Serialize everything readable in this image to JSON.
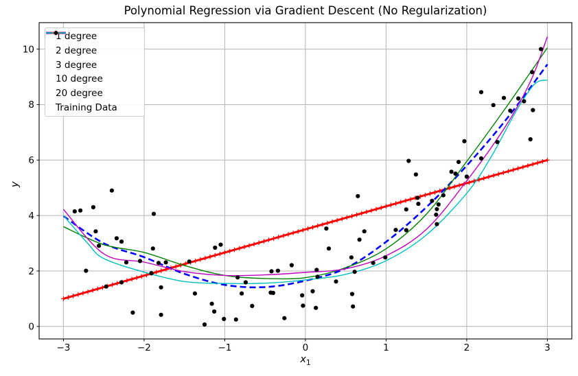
{
  "figure": {
    "title": "Polynomial Regression via Gradient Descent (No Regularization)",
    "xlabel": "x",
    "xlabel_sub": "1",
    "ylabel": "y",
    "background": "#ffffff",
    "grid_color": "#b4b4b4",
    "spine_color": "#000000",
    "text_color": "#000000"
  },
  "chart_data": {
    "type": "line+scatter",
    "title": "Polynomial Regression via Gradient Descent (No Regularization)",
    "xlabel": "x_1",
    "ylabel": "y",
    "xlim": [
      -3.3,
      3.31
    ],
    "ylim": [
      -0.45,
      10.96
    ],
    "xticks": [
      -3,
      -2,
      -1,
      0,
      1,
      2,
      3
    ],
    "yticks": [
      0,
      2,
      4,
      6,
      8,
      10
    ],
    "grid": true,
    "legend_position": "upper left",
    "series": [
      {
        "name": "1 degree",
        "color": "#ff0000",
        "style": "solid",
        "width": 3,
        "marker": "plus",
        "marker_count": 100,
        "points": [
          [
            -3,
            1.0
          ],
          [
            3,
            6.0
          ]
        ]
      },
      {
        "name": "2 degree",
        "color": "#0000ff",
        "style": "dashed",
        "width": 2.6,
        "marker": "none",
        "points": [
          [
            -3,
            3.98
          ],
          [
            -2.5,
            3.0
          ],
          [
            -2,
            2.5
          ],
          [
            -1.5,
            1.9
          ],
          [
            -1,
            1.5
          ],
          [
            -0.5,
            1.42
          ],
          [
            0,
            1.65
          ],
          [
            0.5,
            2.1
          ],
          [
            1,
            3.05
          ],
          [
            1.5,
            4.3
          ],
          [
            2,
            5.8
          ],
          [
            2.5,
            7.5
          ],
          [
            3,
            9.45
          ]
        ]
      },
      {
        "name": "3 degree",
        "color": "#008000",
        "style": "solid",
        "width": 1.4,
        "marker": "none",
        "points": [
          [
            -3,
            3.6
          ],
          [
            -2.5,
            2.95
          ],
          [
            -2,
            2.67
          ],
          [
            -1.5,
            2.2
          ],
          [
            -1,
            1.84
          ],
          [
            -0.5,
            1.73
          ],
          [
            0,
            1.76
          ],
          [
            0.5,
            2.12
          ],
          [
            1,
            2.8
          ],
          [
            1.5,
            4.05
          ],
          [
            2,
            5.95
          ],
          [
            2.5,
            7.95
          ],
          [
            3,
            10.05
          ]
        ]
      },
      {
        "name": "10 degree",
        "color": "#bf00bf",
        "style": "solid",
        "width": 1.4,
        "marker": "none",
        "points": [
          [
            -3,
            4.22
          ],
          [
            -2.5,
            2.62
          ],
          [
            -2,
            2.32
          ],
          [
            -1.5,
            1.98
          ],
          [
            -1,
            1.84
          ],
          [
            -0.5,
            1.86
          ],
          [
            0,
            1.95
          ],
          [
            0.5,
            2.08
          ],
          [
            1,
            2.55
          ],
          [
            1.5,
            3.5
          ],
          [
            2,
            5.25
          ],
          [
            2.5,
            7.3
          ],
          [
            2.8,
            8.9
          ],
          [
            3,
            10.45
          ]
        ]
      },
      {
        "name": "20 degree",
        "color": "#00bfbf",
        "style": "solid",
        "width": 1.4,
        "marker": "none",
        "points": [
          [
            -3,
            4.0
          ],
          [
            -2.7,
            3.0
          ],
          [
            -2.5,
            2.45
          ],
          [
            -2,
            1.96
          ],
          [
            -1.5,
            1.62
          ],
          [
            -1,
            1.55
          ],
          [
            -0.5,
            1.56
          ],
          [
            0,
            1.68
          ],
          [
            0.5,
            1.88
          ],
          [
            1,
            2.37
          ],
          [
            1.5,
            3.3
          ],
          [
            2,
            4.8
          ],
          [
            2.3,
            6.1
          ],
          [
            2.6,
            7.7
          ],
          [
            2.8,
            8.6
          ],
          [
            2.9,
            8.85
          ],
          [
            3,
            8.88
          ]
        ]
      }
    ],
    "scatter": {
      "name": "Training Data",
      "color": "#000000",
      "marker": "dot",
      "points": [
        [
          -2.4,
          4.9
        ],
        [
          -2.63,
          4.3
        ],
        [
          -2.86,
          4.15
        ],
        [
          -2.79,
          4.18
        ],
        [
          -1.88,
          4.06
        ],
        [
          -2.6,
          3.43
        ],
        [
          -2.34,
          3.18
        ],
        [
          -2.28,
          3.06
        ],
        [
          -2.56,
          2.91
        ],
        [
          -1.89,
          2.81
        ],
        [
          -1.12,
          2.84
        ],
        [
          -1.05,
          2.95
        ],
        [
          -2.72,
          2.01
        ],
        [
          -2.22,
          2.31
        ],
        [
          -2.05,
          2.36
        ],
        [
          -1.82,
          2.29
        ],
        [
          -1.73,
          2.31
        ],
        [
          -1.44,
          2.34
        ],
        [
          -1.91,
          1.92
        ],
        [
          -2.47,
          1.44
        ],
        [
          -2.28,
          1.59
        ],
        [
          -1.79,
          1.41
        ],
        [
          -1.37,
          1.19
        ],
        [
          -1.16,
          0.82
        ],
        [
          -1.13,
          0.54
        ],
        [
          -2.14,
          0.5
        ],
        [
          -1.79,
          0.42
        ],
        [
          -1.25,
          0.07
        ],
        [
          -1.01,
          0.27
        ],
        [
          -0.86,
          0.25
        ],
        [
          -0.66,
          0.74
        ],
        [
          -0.79,
          1.19
        ],
        [
          -0.4,
          1.21
        ],
        [
          -0.26,
          0.3
        ],
        [
          0.65,
          4.7
        ],
        [
          0.26,
          3.53
        ],
        [
          0.73,
          3.43
        ],
        [
          0.29,
          2.81
        ],
        [
          0.67,
          3.13
        ],
        [
          1.12,
          3.48
        ],
        [
          1.25,
          3.47
        ],
        [
          -0.84,
          1.77
        ],
        [
          -0.74,
          1.59
        ],
        [
          -0.43,
          1.22
        ],
        [
          -0.42,
          1.99
        ],
        [
          -0.34,
          2.01
        ],
        [
          -0.17,
          2.21
        ],
        [
          0.14,
          2.04
        ],
        [
          0.15,
          1.79
        ],
        [
          0.38,
          1.62
        ],
        [
          0.57,
          2.49
        ],
        [
          0.84,
          2.29
        ],
        [
          0.61,
          1.97
        ],
        [
          0.09,
          1.27
        ],
        [
          -0.04,
          1.12
        ],
        [
          -0.03,
          0.75
        ],
        [
          0.13,
          0.67
        ],
        [
          0.58,
          1.17
        ],
        [
          0.59,
          0.72
        ],
        [
          0.99,
          2.49
        ],
        [
          2.92,
          10.0
        ],
        [
          2.81,
          9.17
        ],
        [
          2.64,
          8.22
        ],
        [
          2.71,
          8.12
        ],
        [
          2.18,
          8.45
        ],
        [
          2.46,
          8.24
        ],
        [
          2.33,
          7.98
        ],
        [
          2.54,
          7.78
        ],
        [
          2.82,
          7.8
        ],
        [
          1.97,
          6.68
        ],
        [
          2.38,
          6.65
        ],
        [
          2.79,
          6.75
        ],
        [
          1.28,
          5.97
        ],
        [
          1.37,
          5.48
        ],
        [
          1.81,
          5.58
        ],
        [
          1.86,
          5.51
        ],
        [
          1.9,
          5.93
        ],
        [
          2.0,
          5.4
        ],
        [
          2.18,
          6.06
        ],
        [
          1.25,
          4.22
        ],
        [
          1.39,
          4.64
        ],
        [
          1.4,
          4.42
        ],
        [
          1.57,
          4.53
        ],
        [
          1.71,
          4.73
        ],
        [
          1.65,
          4.4
        ],
        [
          1.63,
          4.23
        ],
        [
          1.62,
          4.03
        ],
        [
          1.63,
          3.69
        ]
      ]
    }
  },
  "legend": {
    "entries": [
      "1 degree",
      "2 degree",
      "3 degree",
      "10 degree",
      "20 degree",
      "Training Data"
    ]
  }
}
